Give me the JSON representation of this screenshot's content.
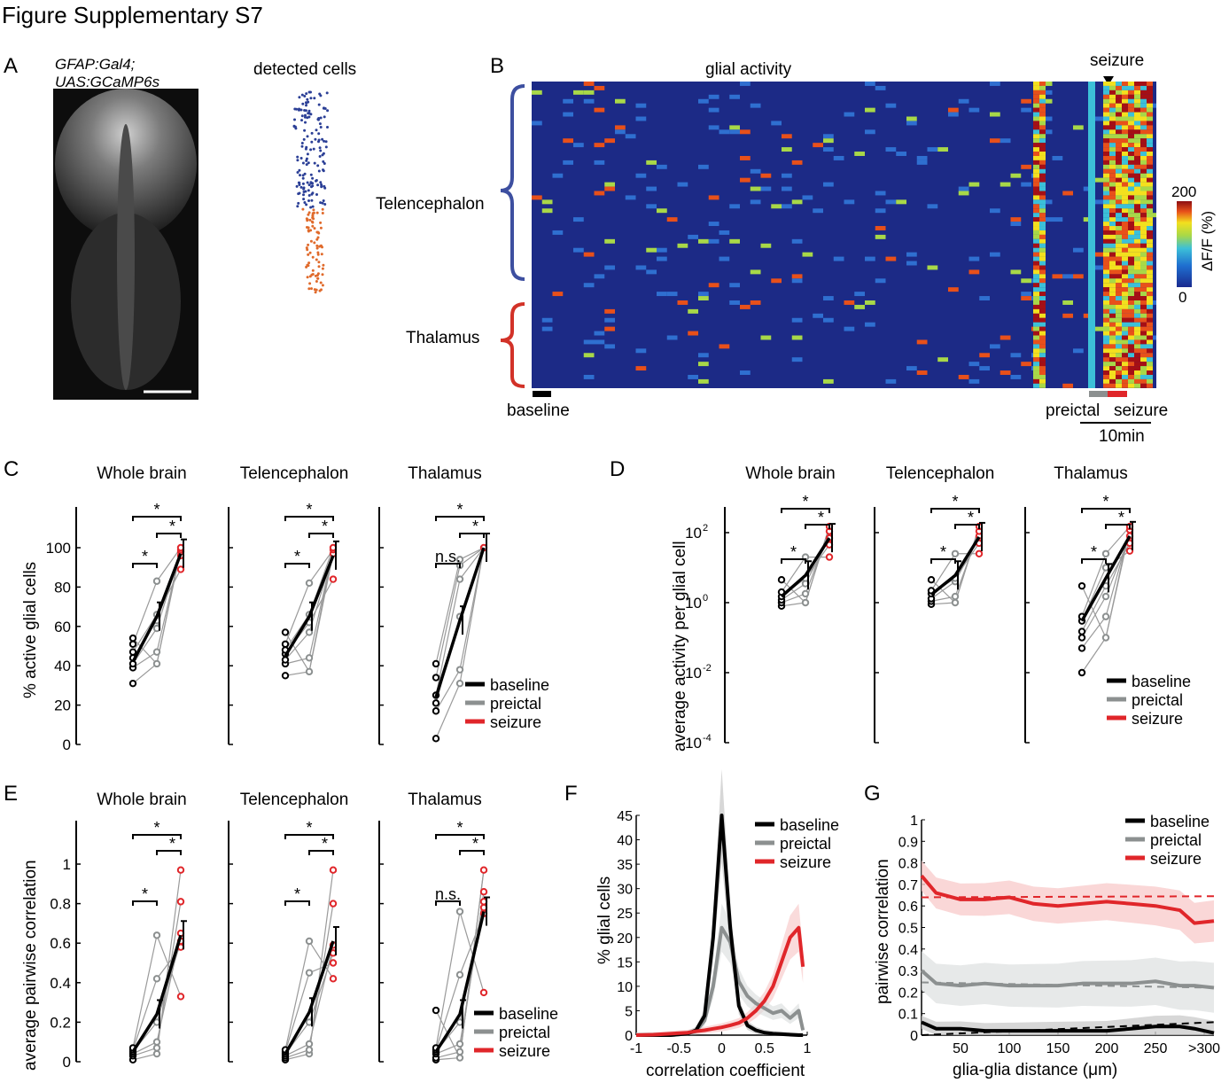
{
  "page": {
    "title": "Figure Supplementary S7"
  },
  "panels": {
    "A": {
      "label": "A",
      "line1": "GFAP:Gal4;",
      "line2": "UAS:GCaMP6s",
      "cells_title": "detected cells"
    },
    "B": {
      "label": "B",
      "title": "glial activity",
      "seizure_marker": "seizure",
      "regions": [
        "Telencephalon",
        "Thalamus"
      ],
      "baseline": "baseline",
      "preictal": "preictal",
      "seizure": "seizure",
      "scalebar": "10min",
      "colorbar": {
        "label": "ΔF/F (%)",
        "max": "200",
        "min": "0"
      }
    },
    "C": {
      "label": "C",
      "heads": [
        "Whole brain",
        "Telencephalon",
        "Thalamus"
      ],
      "ylabel": "% active glial cells",
      "yticks": [
        "0",
        "20",
        "40",
        "60",
        "80",
        "100"
      ],
      "ns": "n.s."
    },
    "D": {
      "label": "D",
      "heads": [
        "Whole brain",
        "Telencephalon",
        "Thalamus"
      ],
      "ylabel": "average activity per glial cell",
      "yticks": [
        "10",
        "10",
        "10",
        "10"
      ],
      "yexp": [
        "-4",
        "-2",
        "0",
        "2"
      ]
    },
    "E": {
      "label": "E",
      "heads": [
        "Whole brain",
        "Telencephalon",
        "Thalamus"
      ],
      "ylabel": "average pairwise correlation",
      "yticks": [
        "0",
        "0.2",
        "0.4",
        "0.6",
        "0.8",
        "1"
      ],
      "ns": "n.s."
    },
    "F": {
      "label": "F",
      "ylabel": "% glial cells",
      "xlabel": "correlation coefficient",
      "yticks": [
        "0",
        "5",
        "10",
        "15",
        "20",
        "25",
        "30",
        "35",
        "40",
        "45"
      ],
      "xticks": [
        "-1",
        "-0.5",
        "0",
        "0.5",
        "1"
      ]
    },
    "G": {
      "label": "G",
      "ylabel": "pairwise correlation",
      "xlabel": "glia-glia distance (μm)",
      "yticks": [
        "0",
        "0.1",
        "0.2",
        "0.3",
        "0.4",
        "0.5",
        "0.6",
        "0.7",
        "0.8",
        "0.9",
        "1"
      ],
      "xticks": [
        "50",
        "100",
        "150",
        "200",
        "250",
        ">300"
      ]
    }
  },
  "legend": [
    "baseline",
    "preictal",
    "seizure"
  ],
  "colors": {
    "baseline": "#000000",
    "preictal": "#8c9090",
    "seizure": "#e0262a",
    "telen": "#3d4fa0",
    "thal": "#d23228"
  },
  "star": "*",
  "chart_data": [
    {
      "panel": "C",
      "type": "scatter",
      "ylim": [
        0,
        100
      ],
      "ylabel": "% active glial cells",
      "series": [
        {
          "name": "Whole brain",
          "baseline": [
            31,
            39,
            41,
            44,
            47,
            51,
            54
          ],
          "preictal": [
            41,
            47,
            59,
            63,
            66,
            83
          ],
          "seizure": [
            89,
            96,
            98,
            99,
            100
          ],
          "means": [
            42,
            65,
            97
          ]
        },
        {
          "name": "Telencephalon",
          "baseline": [
            35,
            41,
            43,
            46,
            48,
            51,
            57
          ],
          "preictal": [
            37,
            44,
            57,
            62,
            66,
            82
          ],
          "seizure": [
            84,
            97,
            99,
            100
          ],
          "means": [
            45,
            65,
            96
          ]
        },
        {
          "name": "Thalamus",
          "baseline": [
            3,
            17,
            21,
            25,
            34,
            41
          ],
          "preictal": [
            31,
            38,
            65,
            84,
            91,
            94
          ],
          "seizure": [
            100
          ],
          "means": [
            24,
            63,
            100
          ]
        }
      ]
    },
    {
      "panel": "D",
      "type": "scatter",
      "yscale": "log",
      "ylim": [
        0.0001,
        200
      ],
      "ylabel": "average activity per glial cell",
      "series": [
        {
          "name": "Whole brain",
          "baseline": [
            0.8,
            1.0,
            1.2,
            1.5,
            2.0,
            4.5
          ],
          "preictal": [
            1.0,
            1.8,
            3.5,
            5.0,
            20
          ],
          "seizure": [
            20,
            45,
            70,
            110,
            150
          ],
          "means": [
            1.5,
            6,
            70
          ]
        },
        {
          "name": "Telencephalon",
          "baseline": [
            0.9,
            1.1,
            1.3,
            1.8,
            2.2,
            4.5
          ],
          "preictal": [
            1.0,
            1.5,
            4.0,
            5.0,
            25
          ],
          "seizure": [
            25,
            50,
            80,
            110,
            150
          ],
          "means": [
            1.7,
            6,
            75
          ]
        },
        {
          "name": "Thalamus",
          "baseline": [
            0.01,
            0.05,
            0.1,
            0.15,
            0.3,
            0.4,
            3.0
          ],
          "preictal": [
            0.1,
            0.4,
            1.5,
            3.0,
            10,
            25
          ],
          "seizure": [
            30,
            50,
            80,
            120,
            150
          ],
          "means": [
            0.3,
            5,
            80
          ]
        }
      ]
    },
    {
      "panel": "E",
      "type": "scatter",
      "ylim": [
        0,
        1
      ],
      "ylabel": "average pairwise correlation",
      "series": [
        {
          "name": "Whole brain",
          "baseline": [
            0.01,
            0.03,
            0.04,
            0.05,
            0.06,
            0.07
          ],
          "preictal": [
            0.04,
            0.07,
            0.1,
            0.2,
            0.42,
            0.64
          ],
          "seizure": [
            0.33,
            0.58,
            0.61,
            0.65,
            0.81,
            0.97
          ],
          "means": [
            0.05,
            0.24,
            0.64
          ]
        },
        {
          "name": "Telencephalon",
          "baseline": [
            0.01,
            0.02,
            0.03,
            0.04,
            0.05,
            0.06
          ],
          "preictal": [
            0.04,
            0.06,
            0.09,
            0.2,
            0.45,
            0.61
          ],
          "seizure": [
            0.42,
            0.5,
            0.55,
            0.59,
            0.8,
            0.97
          ],
          "means": [
            0.04,
            0.25,
            0.61
          ]
        },
        {
          "name": "Thalamus",
          "baseline": [
            0.01,
            0.02,
            0.04,
            0.05,
            0.06,
            0.07,
            0.26
          ],
          "preictal": [
            0.02,
            0.05,
            0.09,
            0.2,
            0.44,
            0.76
          ],
          "seizure": [
            0.35,
            0.75,
            0.78,
            0.81,
            0.86,
            0.97
          ],
          "means": [
            0.05,
            0.24,
            0.76
          ]
        }
      ]
    },
    {
      "panel": "F",
      "type": "line",
      "x": [
        -1,
        -0.8,
        -0.6,
        -0.4,
        -0.3,
        -0.2,
        -0.1,
        0,
        0.1,
        0.2,
        0.3,
        0.4,
        0.5,
        0.6,
        0.7,
        0.8,
        0.9,
        0.95
      ],
      "xlim": [
        -1,
        1
      ],
      "ylim": [
        0,
        45
      ],
      "xlabel": "correlation coefficient",
      "ylabel": "% glial cells",
      "series": [
        {
          "name": "baseline",
          "values": [
            0,
            0,
            0,
            0.3,
            1,
            4,
            20,
            45,
            22,
            6,
            2,
            1,
            0.5,
            0.3,
            0.2,
            0.1,
            0,
            0
          ]
        },
        {
          "name": "preictal",
          "values": [
            0,
            0,
            0,
            0.3,
            0.8,
            3,
            10,
            22,
            19,
            11,
            8,
            6.5,
            5.5,
            4.5,
            5,
            3.5,
            5,
            1
          ]
        },
        {
          "name": "seizure",
          "values": [
            0,
            0.1,
            0.3,
            0.5,
            0.8,
            1,
            1.3,
            1.6,
            2,
            2.5,
            3.5,
            5,
            7,
            10,
            15,
            20,
            22,
            14
          ]
        }
      ]
    },
    {
      "panel": "G",
      "type": "line",
      "x": [
        10,
        25,
        50,
        75,
        100,
        125,
        150,
        175,
        200,
        225,
        250,
        275,
        290,
        310
      ],
      "ylim": [
        0,
        1
      ],
      "xlabel": "glia-glia distance (μm)",
      "ylabel": "pairwise correlation",
      "series": [
        {
          "name": "baseline",
          "values": [
            0.06,
            0.03,
            0.03,
            0.02,
            0.02,
            0.02,
            0.02,
            0.02,
            0.02,
            0.03,
            0.04,
            0.04,
            0.03,
            0.01
          ]
        },
        {
          "name": "preictal",
          "values": [
            0.3,
            0.24,
            0.23,
            0.24,
            0.23,
            0.23,
            0.23,
            0.24,
            0.24,
            0.24,
            0.25,
            0.23,
            0.23,
            0.22
          ]
        },
        {
          "name": "seizure",
          "values": [
            0.74,
            0.66,
            0.63,
            0.63,
            0.64,
            0.61,
            0.6,
            0.61,
            0.62,
            0.61,
            0.6,
            0.58,
            0.52,
            0.53
          ]
        }
      ]
    }
  ]
}
